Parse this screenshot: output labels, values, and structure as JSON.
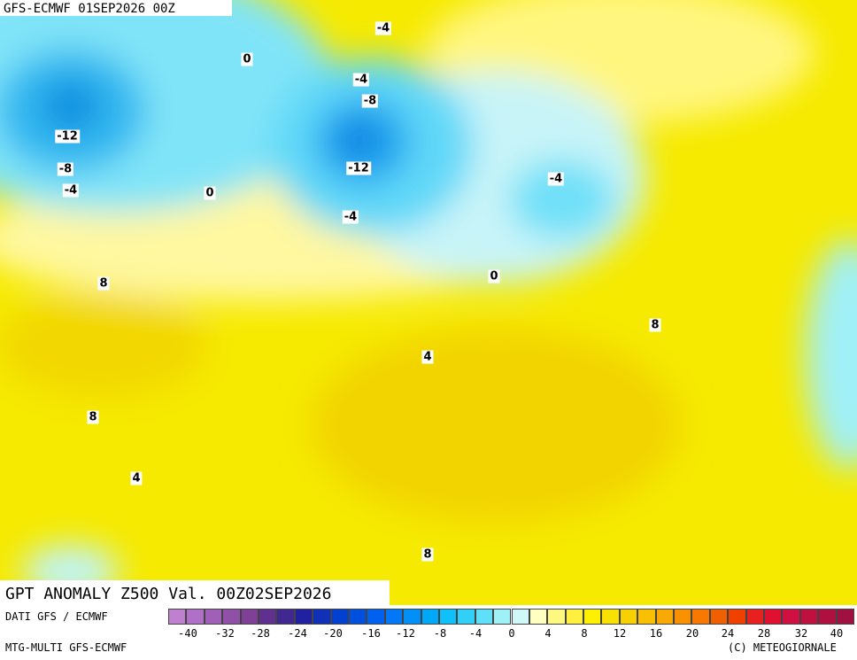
{
  "header": {
    "run": "GFS-ECMWF 01SEP2026 00Z",
    "title": "GPT ANOMALY Z500 Val. 00Z02SEP2026"
  },
  "contour_labels": [
    -4,
    0,
    -4,
    -8,
    -12,
    -12,
    -8,
    -4,
    0,
    -4,
    -4,
    0,
    8,
    8,
    4,
    8,
    4,
    8
  ],
  "footer": {
    "source": "DATI GFS / ECMWF",
    "model": "MTG-MULTI GFS-ECMWF",
    "copyright": "(C) METEOGIORNALE"
  },
  "colorbar": {
    "labels": [
      -40,
      -32,
      -28,
      -24,
      -20,
      -16,
      -12,
      -8,
      -4,
      0,
      4,
      8,
      12,
      16,
      20,
      24,
      28,
      32,
      40
    ],
    "colors": [
      "#c080d0",
      "#b070c8",
      "#a060b8",
      "#9050a8",
      "#804098",
      "#603090",
      "#402890",
      "#2020a0",
      "#1030b8",
      "#0040d0",
      "#0050e0",
      "#0060f0",
      "#0078f8",
      "#0090f8",
      "#00a8f8",
      "#10c0f8",
      "#30d0f8",
      "#60e0f8",
      "#a0f0f8",
      "#d0f8f8",
      "#ffffc0",
      "#fff880",
      "#fff040",
      "#fff000",
      "#f8e000",
      "#f8d000",
      "#f8c000",
      "#f8a800",
      "#f89000",
      "#f87800",
      "#f06000",
      "#f04000",
      "#e82020",
      "#e01030",
      "#d01040",
      "#c01040",
      "#b01040",
      "#a01040"
    ]
  }
}
